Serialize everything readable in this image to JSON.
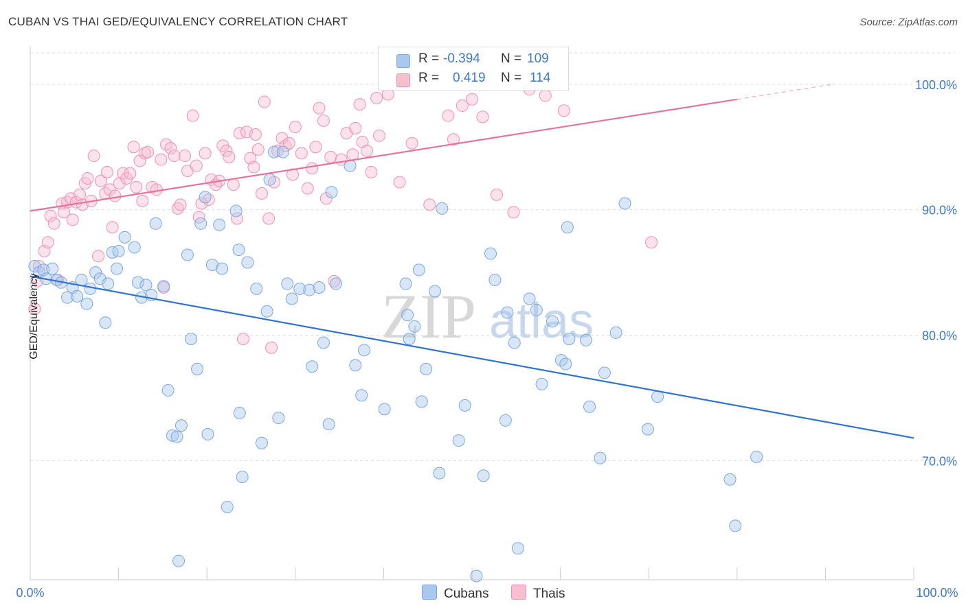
{
  "header": {
    "title": "CUBAN VS THAI GED/EQUIVALENCY CORRELATION CHART",
    "source": "Source: ZipAtlas.com"
  },
  "watermark": {
    "zip": "ZIP",
    "atlas": "atlas"
  },
  "legend": {
    "rows": [
      {
        "r_label": "R =",
        "r_value": "-0.394",
        "n_label": "N =",
        "n_value": "109",
        "color": "#a8c8f0",
        "border": "#7aa8e0"
      },
      {
        "r_label": "R =",
        "r_value": "0.419",
        "n_label": "N =",
        "n_value": "114",
        "color": "#f8bfd0",
        "border": "#f090b0"
      }
    ]
  },
  "bottom_legend": {
    "cubans": "Cubans",
    "thais": "Thais"
  },
  "colors": {
    "cubans_fill": "rgba(168,200,240,0.45)",
    "cubans_stroke": "#7aa8e0",
    "cubans_line": "#2f74d0",
    "thais_fill": "rgba(248,191,208,0.45)",
    "thais_stroke": "#f090b0",
    "thais_line": "#e8739a",
    "tick_label": "#3e78c9",
    "grid": "#dddddd"
  },
  "chart_data": {
    "type": "scatter",
    "title": "CUBAN VS THAI GED/EQUIVALENCY CORRELATION CHART",
    "xlabel": "",
    "ylabel": "GED/Equivalency",
    "xlim": [
      0,
      100
    ],
    "ylim": [
      60.5,
      103
    ],
    "x_tick_labels": [
      "0.0%",
      "100.0%"
    ],
    "y_ticks": [
      70,
      80,
      90,
      100
    ],
    "y_tick_labels": [
      "70.0%",
      "80.0%",
      "90.0%",
      "100.0%"
    ],
    "grid": true,
    "legend_position": "top-center",
    "series": [
      {
        "name": "Cubans",
        "r": -0.394,
        "n": 109,
        "trend": {
          "x": [
            0,
            100
          ],
          "y": [
            84.7,
            71.8
          ]
        },
        "points": [
          [
            0.5,
            85.5
          ],
          [
            1,
            85
          ],
          [
            1.5,
            85.2
          ],
          [
            1.8,
            84.5
          ],
          [
            2.5,
            85.3
          ],
          [
            3,
            84.4
          ],
          [
            3.5,
            84.2
          ],
          [
            4.2,
            83
          ],
          [
            4.8,
            83.8
          ],
          [
            5.3,
            83.1
          ],
          [
            5.8,
            84.4
          ],
          [
            6.4,
            82.5
          ],
          [
            6.8,
            83.7
          ],
          [
            7.4,
            85
          ],
          [
            7.9,
            84.5
          ],
          [
            8.5,
            81
          ],
          [
            8.8,
            84.1
          ],
          [
            9.3,
            86.6
          ],
          [
            9.8,
            85.3
          ],
          [
            10,
            86.7
          ],
          [
            10.7,
            87.8
          ],
          [
            11.8,
            87
          ],
          [
            12.2,
            84.2
          ],
          [
            12.6,
            83
          ],
          [
            13.1,
            84
          ],
          [
            13.7,
            83.2
          ],
          [
            14.2,
            88.9
          ],
          [
            15.1,
            83.9
          ],
          [
            15.6,
            75.6
          ],
          [
            16.1,
            72
          ],
          [
            16.6,
            71.9
          ],
          [
            16.8,
            62
          ],
          [
            17.1,
            72.8
          ],
          [
            17.8,
            86.4
          ],
          [
            18.2,
            79.7
          ],
          [
            18.9,
            77.3
          ],
          [
            19.3,
            88.9
          ],
          [
            19.8,
            91
          ],
          [
            20.1,
            72.1
          ],
          [
            20.6,
            85.6
          ],
          [
            21.4,
            88.8
          ],
          [
            21.7,
            85.3
          ],
          [
            22.3,
            66.3
          ],
          [
            23.3,
            89.9
          ],
          [
            23.6,
            86.8
          ],
          [
            23.7,
            73.8
          ],
          [
            24,
            68.7
          ],
          [
            24.6,
            85.8
          ],
          [
            25.6,
            83.7
          ],
          [
            26.2,
            71.4
          ],
          [
            26.8,
            81.9
          ],
          [
            27.1,
            92.4
          ],
          [
            27.6,
            94.6
          ],
          [
            28.1,
            73.4
          ],
          [
            28.6,
            94.6
          ],
          [
            29.1,
            84.1
          ],
          [
            29.6,
            82.9
          ],
          [
            30.5,
            83.7
          ],
          [
            31.6,
            83.6
          ],
          [
            31.9,
            77.5
          ],
          [
            32.7,
            83.8
          ],
          [
            33.2,
            79.4
          ],
          [
            33.8,
            72.9
          ],
          [
            34.1,
            91.4
          ],
          [
            34.6,
            84.1
          ],
          [
            36.2,
            93.5
          ],
          [
            36.8,
            77.6
          ],
          [
            37.5,
            75.2
          ],
          [
            37.8,
            78.8
          ],
          [
            40.1,
            74.1
          ],
          [
            42.5,
            84.1
          ],
          [
            42.7,
            81.6
          ],
          [
            42.9,
            79.7
          ],
          [
            43.5,
            80.7
          ],
          [
            44,
            85.2
          ],
          [
            44.3,
            74.7
          ],
          [
            44.8,
            77.3
          ],
          [
            45.8,
            83.5
          ],
          [
            46.3,
            69
          ],
          [
            46.6,
            90.1
          ],
          [
            48.5,
            71.6
          ],
          [
            49.2,
            74.4
          ],
          [
            50.5,
            60.8
          ],
          [
            51.3,
            68.8
          ],
          [
            52.1,
            86.5
          ],
          [
            52.6,
            84.4
          ],
          [
            53.8,
            73.2
          ],
          [
            54,
            81.8
          ],
          [
            54.8,
            79.4
          ],
          [
            55.2,
            63
          ],
          [
            56.5,
            82.9
          ],
          [
            57.9,
            76.1
          ],
          [
            59.1,
            81.1
          ],
          [
            60.1,
            78
          ],
          [
            60.6,
            77.7
          ],
          [
            61,
            79.7
          ],
          [
            62.9,
            79.6
          ],
          [
            63.3,
            74.3
          ],
          [
            64.5,
            70.2
          ],
          [
            65,
            77
          ],
          [
            66.3,
            80.2
          ],
          [
            67.3,
            90.5
          ],
          [
            69.9,
            72.5
          ],
          [
            71,
            75.1
          ],
          [
            79.2,
            68.5
          ],
          [
            79.8,
            64.8
          ],
          [
            82.2,
            70.3
          ],
          [
            60.8,
            88.6
          ],
          [
            57.3,
            82
          ]
        ]
      },
      {
        "name": "Thais",
        "r": 0.419,
        "n": 114,
        "trend": {
          "x": [
            0,
            80
          ],
          "y": [
            89.9,
            98.8
          ]
        },
        "points": [
          [
            0.5,
            82.1
          ],
          [
            0.8,
            84.3
          ],
          [
            1,
            85.5
          ],
          [
            1.6,
            86.7
          ],
          [
            2,
            87.4
          ],
          [
            2.3,
            89.5
          ],
          [
            2.7,
            88.9
          ],
          [
            3.1,
            84.4
          ],
          [
            3.6,
            90.5
          ],
          [
            3.8,
            89.8
          ],
          [
            4.2,
            90.6
          ],
          [
            4.6,
            90.9
          ],
          [
            4.8,
            89.2
          ],
          [
            5.2,
            90.6
          ],
          [
            5.6,
            91.2
          ],
          [
            5.9,
            90.4
          ],
          [
            6.2,
            92.1
          ],
          [
            6.5,
            92.5
          ],
          [
            6.9,
            90.7
          ],
          [
            7.2,
            94.3
          ],
          [
            7.7,
            86.3
          ],
          [
            8,
            92.3
          ],
          [
            8.5,
            91.3
          ],
          [
            8.7,
            93
          ],
          [
            9,
            91.6
          ],
          [
            9.3,
            88.6
          ],
          [
            9.6,
            91.1
          ],
          [
            10.1,
            92.1
          ],
          [
            10.5,
            92.9
          ],
          [
            10.9,
            92.5
          ],
          [
            11.3,
            92.9
          ],
          [
            11.7,
            95
          ],
          [
            12,
            91.8
          ],
          [
            12.4,
            93.9
          ],
          [
            12.7,
            90.7
          ],
          [
            13,
            94.5
          ],
          [
            13.3,
            94.6
          ],
          [
            13.8,
            91.8
          ],
          [
            14.3,
            91.6
          ],
          [
            14.8,
            94
          ],
          [
            15.1,
            83.8
          ],
          [
            15.4,
            95.2
          ],
          [
            15.9,
            94.9
          ],
          [
            16.3,
            94.3
          ],
          [
            16.7,
            90.1
          ],
          [
            17,
            90.4
          ],
          [
            17.5,
            94.3
          ],
          [
            17.8,
            93.1
          ],
          [
            18.4,
            97.5
          ],
          [
            18.8,
            93.5
          ],
          [
            19.1,
            89.4
          ],
          [
            19.4,
            90.5
          ],
          [
            19.8,
            94.5
          ],
          [
            20.2,
            90.8
          ],
          [
            20.5,
            92.4
          ],
          [
            21,
            92
          ],
          [
            21.4,
            92.3
          ],
          [
            21.8,
            95.1
          ],
          [
            22.2,
            94.7
          ],
          [
            22.5,
            94.2
          ],
          [
            23,
            92
          ],
          [
            23.4,
            89.3
          ],
          [
            23.7,
            96.1
          ],
          [
            24.1,
            79.7
          ],
          [
            24.5,
            96.2
          ],
          [
            24.9,
            94.1
          ],
          [
            25.3,
            93.4
          ],
          [
            25.5,
            96
          ],
          [
            25.8,
            94.8
          ],
          [
            26.2,
            91.3
          ],
          [
            26.5,
            98.6
          ],
          [
            27,
            89.3
          ],
          [
            27.3,
            79
          ],
          [
            27.6,
            92.2
          ],
          [
            28,
            94.7
          ],
          [
            28.5,
            95.7
          ],
          [
            28.9,
            95.1
          ],
          [
            29.3,
            95.3
          ],
          [
            29.7,
            92.8
          ],
          [
            30,
            96.6
          ],
          [
            30.7,
            94.5
          ],
          [
            31.4,
            91.7
          ],
          [
            31.9,
            93.3
          ],
          [
            32.3,
            95
          ],
          [
            32.7,
            98.1
          ],
          [
            33.2,
            97.1
          ],
          [
            33.5,
            90.9
          ],
          [
            34,
            94.2
          ],
          [
            34.4,
            84.3
          ],
          [
            35.2,
            94
          ],
          [
            35.8,
            96.1
          ],
          [
            36.5,
            94.4
          ],
          [
            36.8,
            96.5
          ],
          [
            37.3,
            98.4
          ],
          [
            37.6,
            95.4
          ],
          [
            38.1,
            94.7
          ],
          [
            38.6,
            93
          ],
          [
            39.2,
            98.9
          ],
          [
            39.5,
            95.9
          ],
          [
            40.5,
            99.2
          ],
          [
            41.8,
            92.2
          ],
          [
            43.2,
            95.3
          ],
          [
            45.2,
            90.4
          ],
          [
            47.3,
            97.5
          ],
          [
            47.9,
            95.6
          ],
          [
            48.9,
            98.3
          ],
          [
            50,
            98.8
          ],
          [
            51.2,
            97.4
          ],
          [
            52.8,
            91.2
          ],
          [
            54.7,
            89.8
          ],
          [
            56.5,
            99.6
          ],
          [
            58.3,
            99.1
          ],
          [
            60.4,
            97.9
          ],
          [
            70.3,
            87.4
          ]
        ]
      }
    ]
  }
}
